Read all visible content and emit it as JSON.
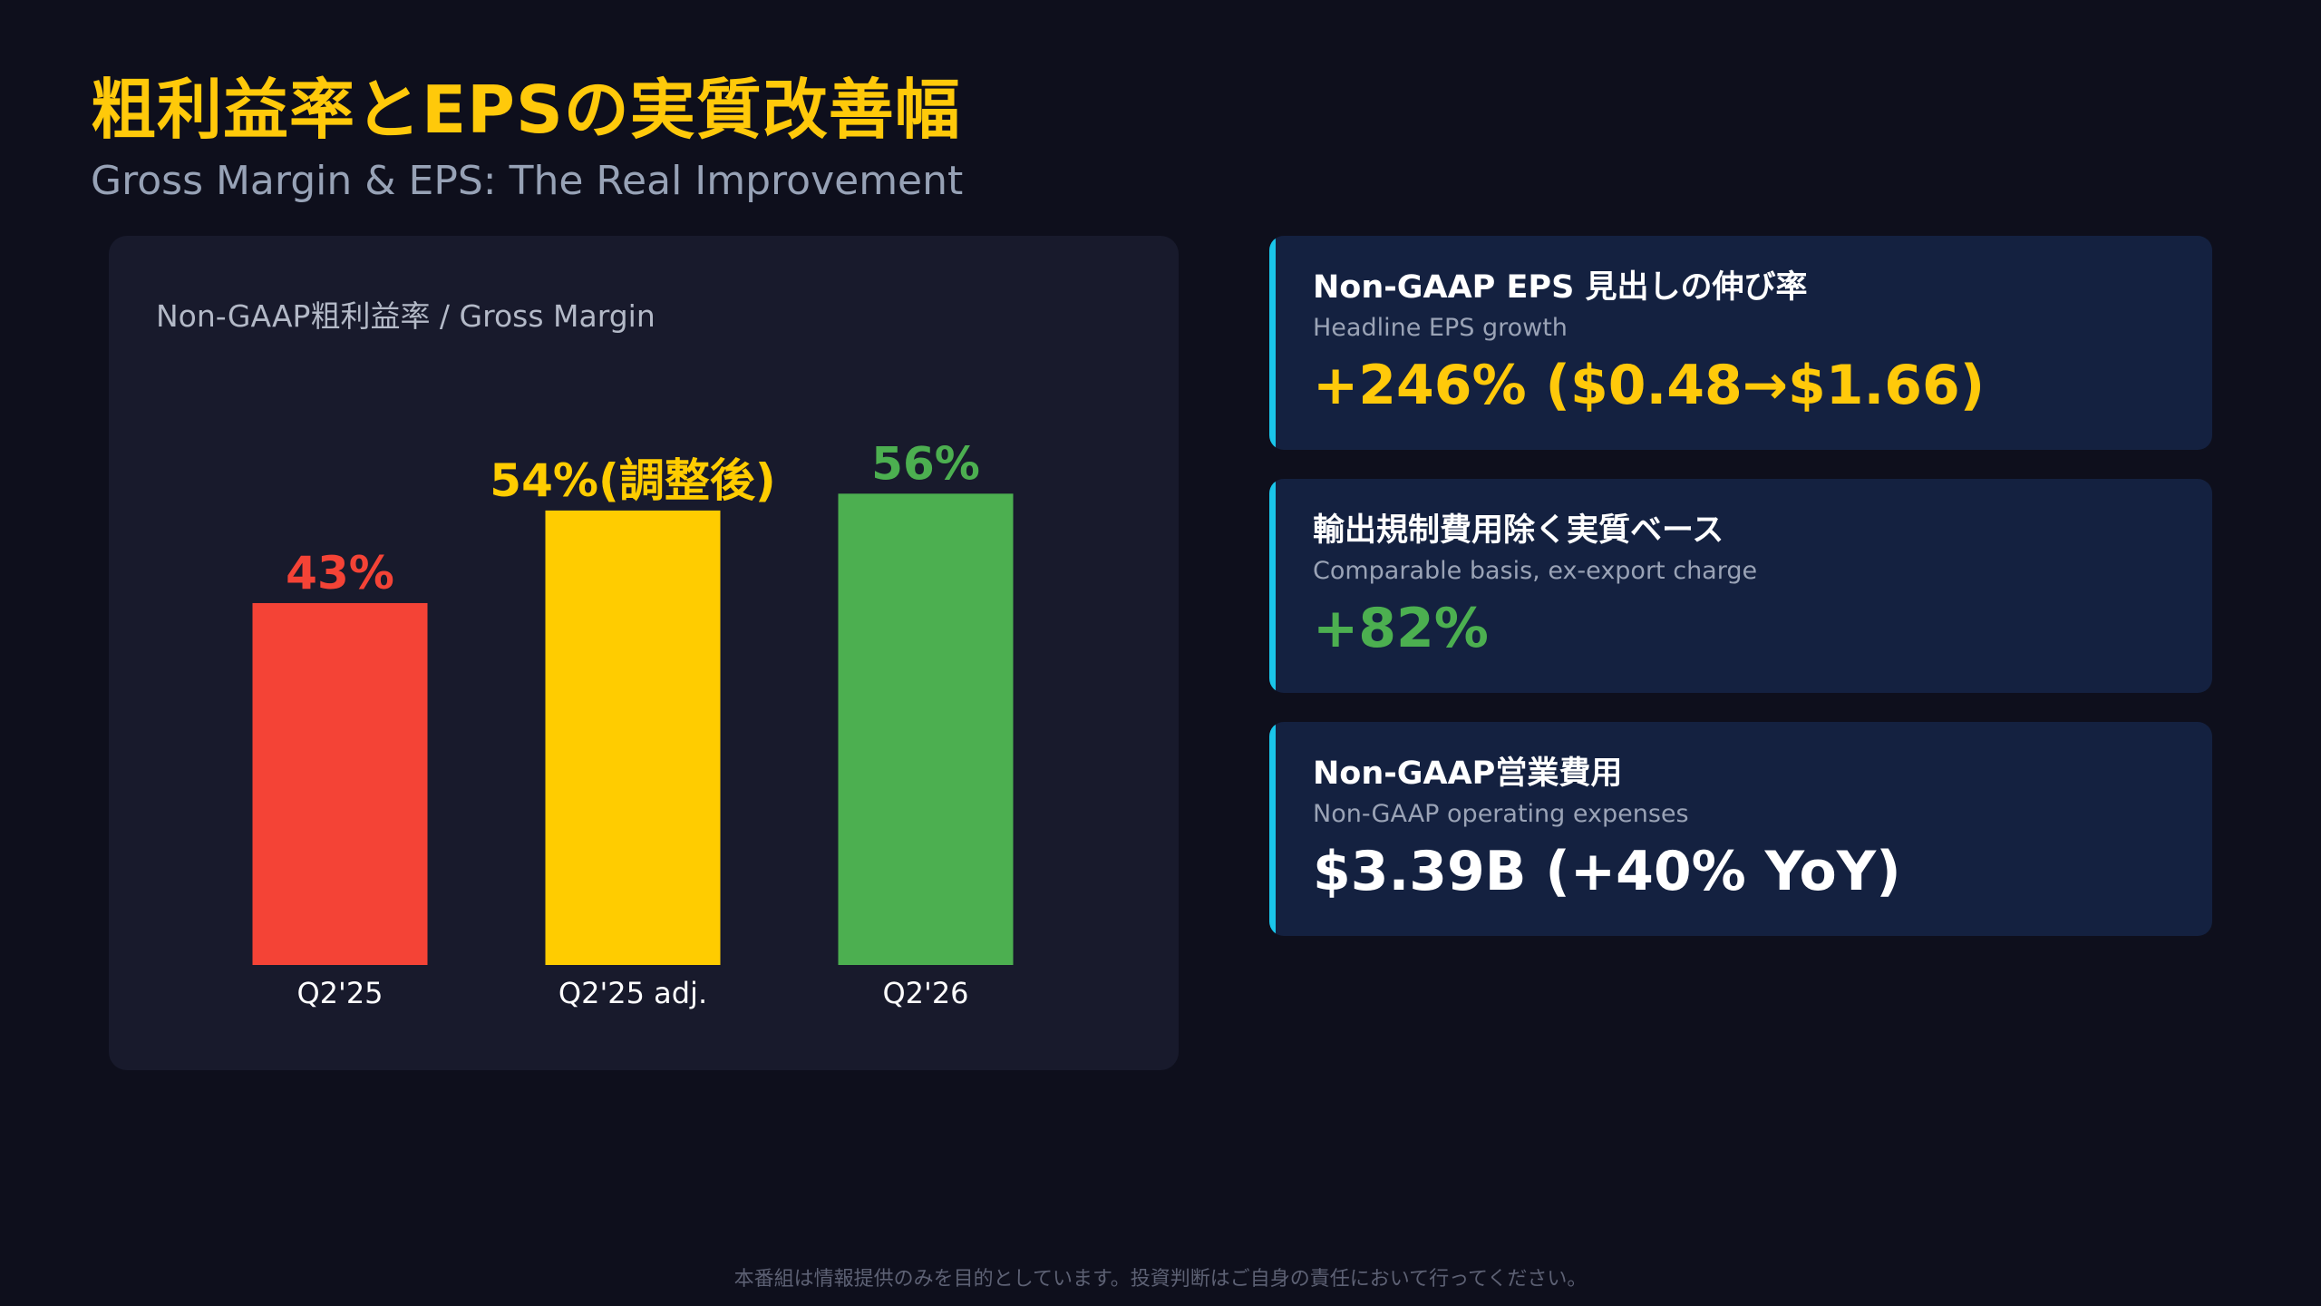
{
  "header": {
    "title": "粗利益率とEPSの実質改善幅",
    "subtitle": "Gross Margin & EPS: The Real Improvement"
  },
  "chart_data": {
    "type": "bar",
    "title": "Non-GAAP粗利益率 / Gross Margin",
    "categories": [
      "Q2'25",
      "Q2'25 adj.",
      "Q2'26"
    ],
    "values": [
      43,
      54,
      56
    ],
    "data_labels": [
      "43%",
      "54%(調整後)",
      "56%"
    ],
    "colors": [
      "#f44336",
      "#ffcc00",
      "#4caf50"
    ],
    "unit": "%",
    "grid": false,
    "legend": false
  },
  "cards": [
    {
      "title": "Non-GAAP EPS 見出しの伸び率",
      "subtitle": "Headline EPS growth",
      "value": "+246% ($0.48→$1.66)",
      "value_color": "#ffc90a"
    },
    {
      "title": "輸出規制費用除く実質ベース",
      "subtitle": "Comparable basis, ex-export charge",
      "value": "+82%",
      "value_color": "#4caf50"
    },
    {
      "title": "Non-GAAP営業費用",
      "subtitle": "Non-GAAP operating expenses",
      "value": "$3.39B (+40% YoY)",
      "value_color": "#ffffff"
    }
  ],
  "colors": {
    "accent": "#ffc90a",
    "card_border": "#1ac5ea",
    "background": "#0e0f1c"
  },
  "footer": {
    "disclaimer": "本番組は情報提供のみを目的としています。投資判断はご自身の責任において行ってください。"
  }
}
